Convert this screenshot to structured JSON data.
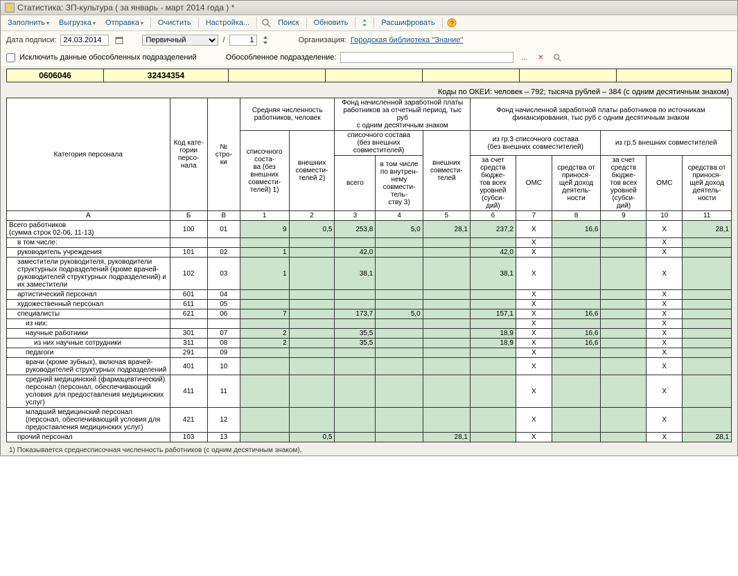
{
  "title": "Статистика: ЗП-культура ( за январь - март 2014 года ) *",
  "toolbar": {
    "fill": "Заполнить",
    "upload": "Выгрузка",
    "send": "Отправка",
    "clear": "Очистить",
    "setup": "Настройка...",
    "search": "Поиск",
    "refresh": "Обновить",
    "decode": "Расшифровать"
  },
  "filter": {
    "date_label": "Дата подписи:",
    "date_value": "24.03.2014",
    "kind_value": "Первичный",
    "slash": "/",
    "num_value": "1",
    "org_label": "Организация:",
    "org_value": "Городская библиотека \"Знание\""
  },
  "checkbox": {
    "exclude_label": "Исключить данные обособленных подразделений",
    "subdiv_label": "Обособленное подразделение:"
  },
  "yellow": {
    "c1": "0606046",
    "c2": "32434354"
  },
  "okei": "Коды по ОКЕИ: человек – 792; тысяча рублей – 384 (с одним десятичным знаком)",
  "headers": {
    "cat": "Категория персонала",
    "code": "Код кате-\nгории персо-\nнала",
    "row": "№\nстро-\nки",
    "avg_count": "Средняя численность работников, человек",
    "fond_period": "Фонд начисленной заработной платы работников за отчетный период, тыс руб\nс одним десятичным знаком",
    "fond_src": "Фонд начисленной заработной платы работников по источникам финансирования, тыс руб с одним десятичным знаком",
    "h1": "списочного соста-\nва (без внешних совмести-\nтелей) 1)",
    "h2": "внешних совмести-\nтелей 2)",
    "h3_grp": "списочного состава\n(без внешних совместителей)",
    "h3": "всего",
    "h4": "в том числе по внутрен-\nнему совмести-\nтель-\nству 3)",
    "h5": "внешних совмести-\nтелей",
    "grp3": "из гр.3 списочного состава\n(без внешних совместителей)",
    "grp5": "из гр.5 внешних совместителей",
    "h6": "за счет средств бюдже-\nтов всех уровней (субси-\nдий)",
    "h7": "ОМС",
    "h8": "средства от принося-\nщей доход деятель-\nности",
    "h9": "за счет средств бюдже-\nтов всех уровней (субси-\nдий)",
    "h10": "ОМС",
    "h11": "средства от принося-\nщей доход деятель-\nности",
    "rA": "А",
    "rB": "Б",
    "rV": "В",
    "r1": "1",
    "r2": "2",
    "r3": "3",
    "r4": "4",
    "r5": "5",
    "r6": "6",
    "r7": "7",
    "r8": "8",
    "r9": "9",
    "r10": "10",
    "r11": "11"
  },
  "rows": [
    {
      "name": "Всего работников\n(сумма строк 02-06, 11-13)",
      "indent": 0,
      "code": "100",
      "rn": "01",
      "c1": "9",
      "c2": "0,5",
      "c3": "253,8",
      "c4": "5,0",
      "c5": "28,1",
      "c6": "237,2",
      "c7": "X",
      "c8": "16,6",
      "c9": "",
      "c10": "X",
      "c11": "28,1"
    },
    {
      "name": "в том числе:",
      "indent": 1,
      "code": "",
      "rn": "",
      "c1": "",
      "c2": "",
      "c3": "",
      "c4": "",
      "c5": "",
      "c6": "",
      "c7": "X",
      "c8": "",
      "c9": "",
      "c10": "X",
      "c11": ""
    },
    {
      "name": "руководитель учреждения",
      "indent": 1,
      "code": "101",
      "rn": "02",
      "c1": "1",
      "c2": "",
      "c3": "42,0",
      "c4": "",
      "c5": "",
      "c6": "42,0",
      "c7": "X",
      "c8": "",
      "c9": "",
      "c10": "X",
      "c11": ""
    },
    {
      "name": "заместители руководителя, руководители структурных подразделений (кроме врачей-руководителей структурных подразделений) и их заместители",
      "indent": 1,
      "code": "102",
      "rn": "03",
      "c1": "1",
      "c2": "",
      "c3": "38,1",
      "c4": "",
      "c5": "",
      "c6": "38,1",
      "c7": "X",
      "c8": "",
      "c9": "",
      "c10": "X",
      "c11": ""
    },
    {
      "name": "артистический персонал",
      "indent": 1,
      "code": "601",
      "rn": "04",
      "c1": "",
      "c2": "",
      "c3": "",
      "c4": "",
      "c5": "",
      "c6": "",
      "c7": "X",
      "c8": "",
      "c9": "",
      "c10": "X",
      "c11": ""
    },
    {
      "name": "художественный персонал",
      "indent": 1,
      "code": "611",
      "rn": "05",
      "c1": "",
      "c2": "",
      "c3": "",
      "c4": "",
      "c5": "",
      "c6": "",
      "c7": "X",
      "c8": "",
      "c9": "",
      "c10": "X",
      "c11": ""
    },
    {
      "name": "специалисты",
      "indent": 1,
      "code": "621",
      "rn": "06",
      "c1": "7",
      "c2": "",
      "c3": "173,7",
      "c4": "5,0",
      "c5": "",
      "c6": "157,1",
      "c7": "X",
      "c8": "16,6",
      "c9": "",
      "c10": "X",
      "c11": ""
    },
    {
      "name": "из них:",
      "indent": 2,
      "code": "",
      "rn": "",
      "c1": "",
      "c2": "",
      "c3": "",
      "c4": "",
      "c5": "",
      "c6": "",
      "c7": "X",
      "c8": "",
      "c9": "",
      "c10": "X",
      "c11": ""
    },
    {
      "name": "научные работники",
      "indent": 2,
      "code": "301",
      "rn": "07",
      "c1": "2",
      "c2": "",
      "c3": "35,5",
      "c4": "",
      "c5": "",
      "c6": "18,9",
      "c7": "X",
      "c8": "16,6",
      "c9": "",
      "c10": "X",
      "c11": ""
    },
    {
      "name": "из них научные сотрудники",
      "indent": 3,
      "code": "311",
      "rn": "08",
      "c1": "2",
      "c2": "",
      "c3": "35,5",
      "c4": "",
      "c5": "",
      "c6": "18,9",
      "c7": "X",
      "c8": "16,6",
      "c9": "",
      "c10": "X",
      "c11": ""
    },
    {
      "name": "педагоги",
      "indent": 2,
      "code": "291",
      "rn": "09",
      "c1": "",
      "c2": "",
      "c3": "",
      "c4": "",
      "c5": "",
      "c6": "",
      "c7": "X",
      "c8": "",
      "c9": "",
      "c10": "X",
      "c11": ""
    },
    {
      "name": "врачи (кроме зубных), включая врачей-руководителей структурных подразделений",
      "indent": 2,
      "code": "401",
      "rn": "10",
      "c1": "",
      "c2": "",
      "c3": "",
      "c4": "",
      "c5": "",
      "c6": "",
      "c7": "X",
      "c8": "",
      "c9": "",
      "c10": "X",
      "c11": ""
    },
    {
      "name": "средний медицинский (фармацевтический) персонал (персонал, обеспечивающий условия для предоставления медицинских услуг)",
      "indent": 2,
      "code": "411",
      "rn": "11",
      "c1": "",
      "c2": "",
      "c3": "",
      "c4": "",
      "c5": "",
      "c6": "",
      "c7": "X",
      "c8": "",
      "c9": "",
      "c10": "X",
      "c11": ""
    },
    {
      "name": "младший медицинский персонал (персонал, обеспечивающий условия для предоставления медицинских услуг)",
      "indent": 2,
      "code": "421",
      "rn": "12",
      "c1": "",
      "c2": "",
      "c3": "",
      "c4": "",
      "c5": "",
      "c6": "",
      "c7": "X",
      "c8": "",
      "c9": "",
      "c10": "X",
      "c11": ""
    },
    {
      "name": "прочий персонал",
      "indent": 1,
      "code": "103",
      "rn": "13",
      "c1": "",
      "c2": "0,5",
      "c3": "",
      "c4": "",
      "c5": "28,1",
      "c6": "",
      "c7": "X",
      "c8": "",
      "c9": "",
      "c10": "X",
      "c11": "28,1"
    }
  ],
  "footnote": "1) Показывается среднесписочная численность работников (с одним десятичным знаком).",
  "colors": {
    "green": "#cce3cc",
    "yellow": "#ffffcc"
  }
}
